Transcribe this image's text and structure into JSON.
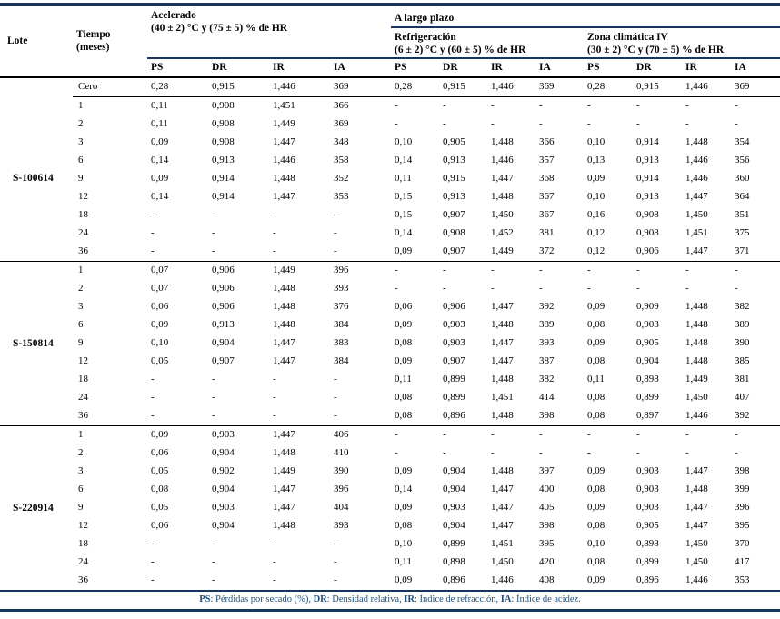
{
  "colors": {
    "rule_navy": "#17365D",
    "rule_black": "#000000",
    "footnote_text": "#1F4E79"
  },
  "header": {
    "lote": "Lote",
    "tiempo_line1": "Tiempo",
    "tiempo_line2": "(meses)",
    "long_term_label": "A largo plazo",
    "groups": [
      {
        "title": "Acelerado",
        "subtitle": "(40 ± 2) °C y (75 ± 5) % de HR"
      },
      {
        "title": "Refrigeración",
        "subtitle": "(6 ± 2) °C y (60 ± 5) % de HR"
      },
      {
        "title": "Zona climática IV",
        "subtitle": "(30 ± 2) °C y (70 ± 5) % de HR"
      }
    ],
    "metrics": [
      "PS",
      "DR",
      "IR",
      "IA"
    ]
  },
  "zero_row": {
    "tiempo": "Cero",
    "values": [
      "0,28",
      "0,915",
      "1,446",
      "369",
      "0,28",
      "0,915",
      "1,446",
      "369",
      "0,28",
      "0,915",
      "1,446",
      "369"
    ]
  },
  "blocks": [
    {
      "lote": "S-100614",
      "rows": [
        {
          "tiempo": "1",
          "values": [
            "0,11",
            "0,908",
            "1,451",
            "366",
            "-",
            "-",
            "-",
            "-",
            "-",
            "-",
            "-",
            "-"
          ]
        },
        {
          "tiempo": "2",
          "values": [
            "0,11",
            "0,908",
            "1,449",
            "369",
            "-",
            "-",
            "-",
            "-",
            "-",
            "-",
            "-",
            "-"
          ]
        },
        {
          "tiempo": "3",
          "values": [
            "0,09",
            "0,908",
            "1,447",
            "348",
            "0,10",
            "0,905",
            "1,448",
            "366",
            "0,10",
            "0,914",
            "1,448",
            "354"
          ]
        },
        {
          "tiempo": "6",
          "values": [
            "0,14",
            "0,913",
            "1,446",
            "358",
            "0,14",
            "0,913",
            "1,446",
            "357",
            "0,13",
            "0,913",
            "1,446",
            "356"
          ]
        },
        {
          "tiempo": "9",
          "values": [
            "0,09",
            "0,914",
            "1,448",
            "352",
            "0,11",
            "0,915",
            "1,447",
            "368",
            "0,09",
            "0,914",
            "1,446",
            "360"
          ]
        },
        {
          "tiempo": "12",
          "values": [
            "0,14",
            "0,914",
            "1,447",
            "353",
            "0,15",
            "0,913",
            "1,448",
            "367",
            "0,10",
            "0,913",
            "1,447",
            "364"
          ]
        },
        {
          "tiempo": "18",
          "values": [
            "-",
            "-",
            "-",
            "-",
            "0,15",
            "0,907",
            "1,450",
            "367",
            "0,16",
            "0,908",
            "1,450",
            "351"
          ]
        },
        {
          "tiempo": "24",
          "values": [
            "-",
            "-",
            "-",
            "-",
            "0,14",
            "0,908",
            "1,452",
            "381",
            "0,12",
            "0,908",
            "1,451",
            "375"
          ]
        },
        {
          "tiempo": "36",
          "values": [
            "-",
            "-",
            "-",
            "-",
            "0,09",
            "0,907",
            "1,449",
            "372",
            "0,12",
            "0,906",
            "1,447",
            "371"
          ]
        }
      ]
    },
    {
      "lote": "S-150814",
      "rows": [
        {
          "tiempo": "1",
          "values": [
            "0,07",
            "0,906",
            "1,449",
            "396",
            "-",
            "-",
            "-",
            "-",
            "-",
            "-",
            "-",
            "-"
          ]
        },
        {
          "tiempo": "2",
          "values": [
            "0,07",
            "0,906",
            "1,448",
            "393",
            "-",
            "-",
            "-",
            "-",
            "-",
            "-",
            "-",
            "-"
          ]
        },
        {
          "tiempo": "3",
          "values": [
            "0,06",
            "0,906",
            "1,448",
            "376",
            "0,06",
            "0,906",
            "1,447",
            "392",
            "0,09",
            "0,909",
            "1,448",
            "382"
          ]
        },
        {
          "tiempo": "6",
          "values": [
            "0,09",
            "0,913",
            "1,448",
            "384",
            "0,09",
            "0,903",
            "1,448",
            "389",
            "0,08",
            "0,903",
            "1,448",
            "389"
          ]
        },
        {
          "tiempo": "9",
          "values": [
            "0,10",
            "0,904",
            "1,447",
            "383",
            "0,08",
            "0,903",
            "1,447",
            "393",
            "0,09",
            "0,905",
            "1,448",
            "390"
          ]
        },
        {
          "tiempo": "12",
          "values": [
            "0,05",
            "0,907",
            "1,447",
            "384",
            "0,09",
            "0,907",
            "1,447",
            "387",
            "0,08",
            "0,904",
            "1,448",
            "385"
          ]
        },
        {
          "tiempo": "18",
          "values": [
            "-",
            "-",
            "-",
            "-",
            "0,11",
            "0,899",
            "1,448",
            "382",
            "0,11",
            "0,898",
            "1,449",
            "381"
          ]
        },
        {
          "tiempo": "24",
          "values": [
            "-",
            "-",
            "-",
            "-",
            "0,08",
            "0,899",
            "1,451",
            "414",
            "0,08",
            "0,899",
            "1,450",
            "407"
          ]
        },
        {
          "tiempo": "36",
          "values": [
            "-",
            "-",
            "-",
            "-",
            "0,08",
            "0,896",
            "1,448",
            "398",
            "0,08",
            "0,897",
            "1,446",
            "392"
          ]
        }
      ]
    },
    {
      "lote": "S-220914",
      "rows": [
        {
          "tiempo": "1",
          "values": [
            "0,09",
            "0,903",
            "1,447",
            "406",
            "-",
            "-",
            "-",
            "-",
            "-",
            "-",
            "-",
            "-"
          ]
        },
        {
          "tiempo": "2",
          "values": [
            "0,06",
            "0,904",
            "1,448",
            "410",
            "-",
            "-",
            "-",
            "-",
            "-",
            "-",
            "-",
            "-"
          ]
        },
        {
          "tiempo": "3",
          "values": [
            "0,05",
            "0,902",
            "1,449",
            "390",
            "0,09",
            "0,904",
            "1,448",
            "397",
            "0,09",
            "0,903",
            "1,447",
            "398"
          ]
        },
        {
          "tiempo": "6",
          "values": [
            "0,08",
            "0,904",
            "1,447",
            "396",
            "0,14",
            "0,904",
            "1,447",
            "400",
            "0,08",
            "0,903",
            "1,448",
            "399"
          ]
        },
        {
          "tiempo": "9",
          "values": [
            "0,05",
            "0,903",
            "1,447",
            "404",
            "0,09",
            "0,903",
            "1,447",
            "405",
            "0,09",
            "0,903",
            "1,447",
            "396"
          ]
        },
        {
          "tiempo": "12",
          "values": [
            "0,06",
            "0,904",
            "1,448",
            "393",
            "0,08",
            "0,904",
            "1,447",
            "398",
            "0,08",
            "0,905",
            "1,447",
            "395"
          ]
        },
        {
          "tiempo": "18",
          "values": [
            "-",
            "-",
            "-",
            "-",
            "0,10",
            "0,899",
            "1,451",
            "395",
            "0,10",
            "0,898",
            "1,450",
            "370"
          ]
        },
        {
          "tiempo": "24",
          "values": [
            "-",
            "-",
            "-",
            "-",
            "0,11",
            "0,898",
            "1,450",
            "420",
            "0,08",
            "0,899",
            "1,450",
            "417"
          ]
        },
        {
          "tiempo": "36",
          "values": [
            "-",
            "-",
            "-",
            "-",
            "0,09",
            "0,896",
            "1,446",
            "408",
            "0,09",
            "0,896",
            "1,446",
            "353"
          ]
        }
      ]
    }
  ],
  "footnote": {
    "segments": [
      {
        "label": "PS",
        "text": ": Pérdidas por secado (%), "
      },
      {
        "label": "DR",
        "text": ": Densidad relativa, "
      },
      {
        "label": "IR",
        "text": ": Índice de refracción, "
      },
      {
        "label": "IA",
        "text": ": Índice de acidez."
      }
    ]
  }
}
